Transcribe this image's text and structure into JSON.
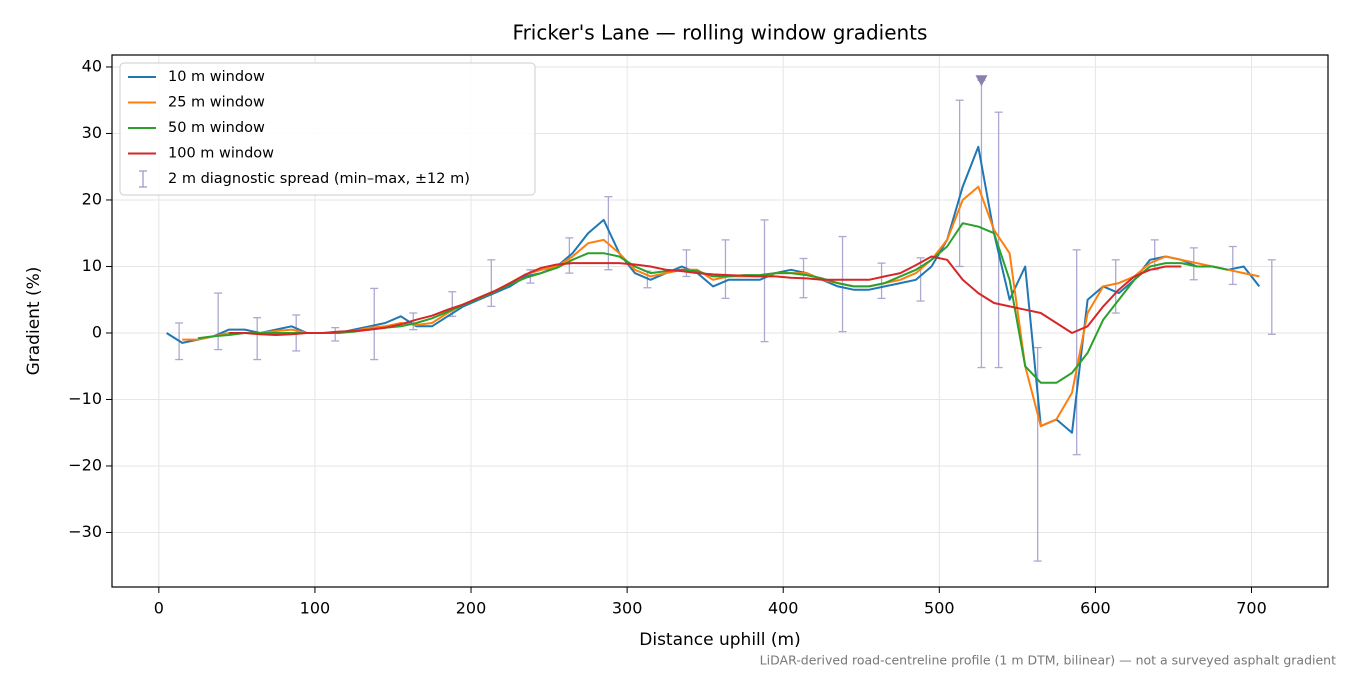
{
  "chart_data": {
    "type": "line",
    "title": "Fricker's Lane — rolling window gradients",
    "xlabel": "Distance uphill (m)",
    "ylabel": "Gradient (%)",
    "footnote": "LiDAR-derived road-centreline profile (1 m DTM, bilinear) — not a surveyed asphalt gradient",
    "xlim": [
      -30,
      749
    ],
    "ylim": [
      -38.2,
      41.8
    ],
    "xticks": [
      0,
      100,
      200,
      300,
      400,
      500,
      600,
      700
    ],
    "yticks": [
      {
        "value": -30,
        "label": "−30"
      },
      {
        "value": -20,
        "label": "−20"
      },
      {
        "value": -10,
        "label": "−10"
      },
      0,
      10,
      20,
      30,
      40
    ],
    "grid": true,
    "legend": "upper left",
    "x": [
      5,
      15,
      25,
      35,
      45,
      55,
      65,
      75,
      85,
      95,
      105,
      115,
      125,
      135,
      145,
      155,
      165,
      175,
      185,
      195,
      205,
      215,
      225,
      235,
      245,
      255,
      265,
      275,
      285,
      295,
      305,
      315,
      325,
      335,
      345,
      355,
      365,
      375,
      385,
      395,
      405,
      415,
      425,
      435,
      445,
      455,
      465,
      475,
      485,
      495,
      505,
      515,
      525,
      535,
      545,
      555,
      565,
      575,
      585,
      595,
      605,
      615,
      625,
      635,
      645,
      655,
      665,
      675,
      685,
      695,
      705
    ],
    "series": [
      {
        "name": "10 m window",
        "color": "#1f77b4",
        "values": [
          0,
          -1.5,
          -1,
          -0.5,
          0.5,
          0.5,
          0,
          0.5,
          1,
          0,
          0,
          0,
          0.5,
          1,
          1.5,
          2.5,
          1,
          1,
          2.5,
          4,
          5,
          6,
          7,
          8.5,
          9,
          10,
          12,
          15,
          17,
          12,
          9,
          8,
          9,
          10,
          9,
          7,
          8,
          8,
          8,
          9,
          9.5,
          9,
          8,
          7,
          6.5,
          6.5,
          7,
          7.5,
          8,
          10,
          14,
          22,
          28,
          15,
          5,
          10,
          -14,
          -13,
          -15,
          5,
          7,
          6,
          8,
          11,
          11.5,
          11,
          10,
          10,
          9.5,
          10,
          7
        ]
      },
      {
        "name": "25 m window",
        "color": "#ff7f0e",
        "values": [
          null,
          -1,
          -1,
          -0.5,
          0,
          0,
          0,
          0.3,
          0.5,
          0,
          0,
          0,
          0.3,
          0.8,
          1,
          1.5,
          1.2,
          1.5,
          3,
          4.3,
          5.2,
          6.2,
          7.5,
          8.8,
          9.5,
          10,
          11.5,
          13.5,
          14,
          12,
          9.5,
          8.5,
          9,
          9.5,
          9.5,
          8,
          8.5,
          8.5,
          8.5,
          9,
          9,
          9,
          8,
          7.5,
          7,
          7,
          7.5,
          8,
          9,
          11,
          14,
          20,
          22,
          15.5,
          12,
          -5,
          -14,
          -13,
          -9,
          3,
          7,
          7.5,
          8.5,
          10.5,
          11.5,
          11,
          10.5,
          10,
          9.5,
          9,
          8.5
        ]
      },
      {
        "name": "50 m window",
        "color": "#2ca02c",
        "values": [
          null,
          null,
          -0.8,
          -0.5,
          -0.3,
          0,
          0,
          0,
          0,
          0,
          0,
          0,
          0.2,
          0.5,
          0.8,
          1,
          1.5,
          2.2,
          3.2,
          4.2,
          5.2,
          6.2,
          7.3,
          8.3,
          9,
          9.8,
          11,
          12,
          12,
          11.5,
          10,
          9,
          9.3,
          9.5,
          9.3,
          8.5,
          8.5,
          8.7,
          8.7,
          9,
          9,
          8.7,
          8.2,
          7.5,
          7,
          7,
          7.5,
          8.5,
          9.5,
          11,
          13,
          16.5,
          16,
          15,
          8,
          -5,
          -7.5,
          -7.5,
          -6,
          -3,
          2,
          5,
          8,
          10,
          10.5,
          10.5,
          10,
          10,
          9.5,
          null,
          null
        ]
      },
      {
        "name": "100 m window",
        "color": "#d62728",
        "values": [
          null,
          null,
          null,
          null,
          0,
          0,
          -0.2,
          -0.3,
          -0.2,
          0,
          0,
          0.2,
          0.3,
          0.5,
          0.8,
          1.3,
          2,
          2.6,
          3.5,
          4.3,
          5.3,
          6.3,
          7.5,
          8.8,
          9.8,
          10.3,
          10.5,
          10.5,
          10.5,
          10.5,
          10.3,
          10,
          9.5,
          9.3,
          9,
          8.8,
          8.7,
          8.6,
          8.5,
          8.5,
          8.3,
          8.2,
          8,
          8,
          8,
          8,
          8.5,
          9,
          10.2,
          11.5,
          11,
          8,
          6,
          4.5,
          4,
          3.5,
          3,
          1.5,
          0,
          1,
          4,
          6.5,
          8.5,
          9.5,
          10,
          10,
          null,
          null,
          null,
          null,
          null
        ]
      }
    ],
    "spread": {
      "name": "2 m diagnostic spread (min–max, ±12 m)",
      "color": "#9e9ac8",
      "x": [
        13,
        38,
        63,
        88,
        113,
        138,
        163,
        188,
        213,
        238,
        263,
        288,
        313,
        338,
        363,
        388,
        413,
        438,
        463,
        488,
        513,
        527,
        538,
        563,
        588,
        613,
        638,
        663,
        688,
        713
      ],
      "low": [
        -4,
        -2.5,
        -4,
        -2.7,
        -1.2,
        -4,
        0.5,
        2.5,
        4,
        7.5,
        9,
        9.5,
        6.8,
        8.5,
        5.2,
        -1.3,
        5.3,
        0.2,
        5.2,
        4.8,
        10,
        -5.2,
        -5.2,
        -34.3,
        -18.3,
        3,
        9.5,
        8,
        7.3,
        -0.2
      ],
      "high": [
        1.5,
        6,
        2.3,
        2.7,
        0.8,
        6.7,
        3,
        6.2,
        11,
        9.5,
        14.3,
        20.5,
        9.3,
        12.5,
        14,
        17,
        11.2,
        14.5,
        10.5,
        11.3,
        35,
        38,
        33.2,
        -2.2,
        12.5,
        11,
        14,
        12.8,
        13,
        11
      ]
    },
    "marker": {
      "x": 527,
      "y": 38,
      "color": "#8c7fb0"
    }
  }
}
